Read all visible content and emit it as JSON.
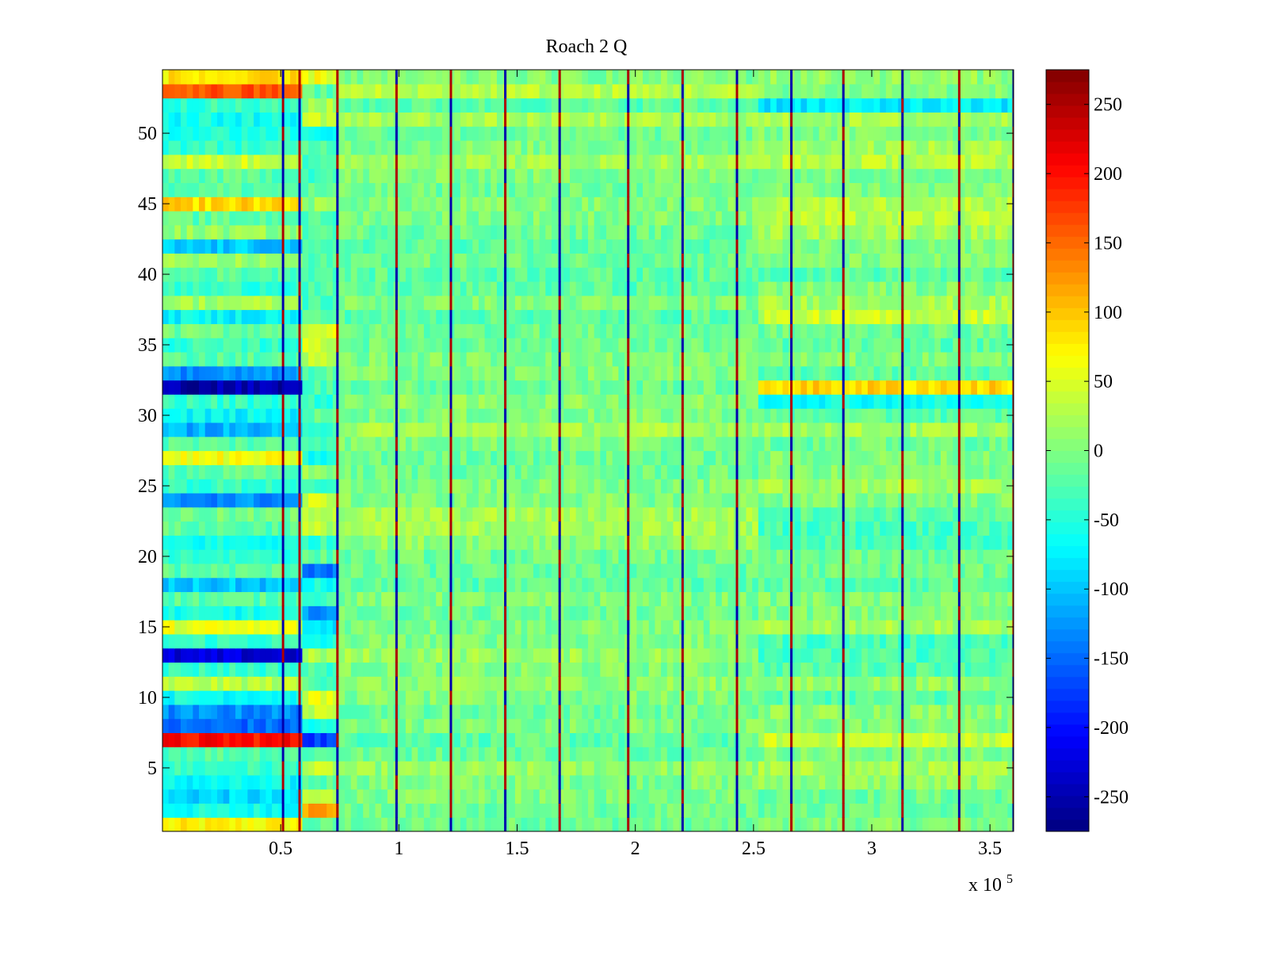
{
  "chart_data": {
    "type": "heatmap",
    "title": "Roach 2 Q",
    "xlabel": "",
    "ylabel": "",
    "x_exponent_label": "x 10",
    "x_exponent_power": "5",
    "xlim": [
      0,
      360000
    ],
    "ylim": [
      0.5,
      54.5
    ],
    "x_ticks": [
      0.5,
      1,
      1.5,
      2,
      2.5,
      3,
      3.5
    ],
    "x_tick_labels": [
      "0.5",
      "1",
      "1.5",
      "2",
      "2.5",
      "3",
      "3.5"
    ],
    "y_ticks": [
      5,
      10,
      15,
      20,
      25,
      30,
      35,
      40,
      45,
      50
    ],
    "y_tick_labels": [
      "5",
      "10",
      "15",
      "20",
      "25",
      "30",
      "35",
      "40",
      "45",
      "50"
    ],
    "rows": 54,
    "colorbar": {
      "colormap": "jet",
      "range": [
        -275,
        275
      ],
      "ticks": [
        -250,
        -200,
        -150,
        -100,
        -50,
        0,
        50,
        100,
        150,
        200,
        250
      ],
      "tick_labels": [
        "-250",
        "-200",
        "-150",
        "-100",
        "-50",
        "0",
        "50",
        "100",
        "150",
        "200",
        "250"
      ]
    },
    "segment_boundaries_x1e5": [
      0.6,
      0.74,
      2.52
    ],
    "vertical_stripes_x1e5": [
      0.51,
      0.58,
      0.74,
      0.99,
      1.22,
      1.45,
      1.68,
      1.97,
      2.2,
      2.43,
      2.66,
      2.88,
      3.13,
      3.37,
      3.6
    ],
    "row_means_segment_1": [
      70,
      -60,
      -90,
      -70,
      -40,
      -20,
      200,
      -150,
      -130,
      -60,
      30,
      -40,
      -230,
      -40,
      55,
      -60,
      -20,
      -100,
      -20,
      -40,
      -60,
      -20,
      -10,
      -130,
      -40,
      -20,
      60,
      -20,
      -110,
      -70,
      -40,
      -250,
      -130,
      -20,
      -40,
      -10,
      -70,
      20,
      -40,
      -20,
      10,
      -100,
      10,
      -20,
      90,
      -20,
      -20,
      40,
      -40,
      -50,
      -60,
      -40,
      160,
      80
    ],
    "row_means_segment_2": [
      -20,
      120,
      30,
      -20,
      30,
      -20,
      -170,
      -60,
      30,
      50,
      -20,
      -30,
      20,
      -60,
      -80,
      -120,
      -30,
      -60,
      -140,
      -20,
      -40,
      30,
      40,
      40,
      -50,
      10,
      -60,
      -20,
      -30,
      -20,
      -40,
      -30,
      -20,
      30,
      40,
      50,
      -20,
      -30,
      -30,
      -20,
      -30,
      -40,
      -20,
      -30,
      10,
      -20,
      -30,
      -40,
      -20,
      -60,
      40,
      20,
      -20,
      60
    ],
    "row_means_segment_3": [
      -10,
      -10,
      0,
      0,
      10,
      -10,
      -20,
      0,
      -10,
      0,
      10,
      0,
      15,
      0,
      0,
      -10,
      0,
      -20,
      -15,
      -10,
      10,
      20,
      20,
      0,
      0,
      -10,
      -10,
      0,
      20,
      0,
      5,
      -10,
      0,
      0,
      -10,
      -10,
      -20,
      0,
      -20,
      -20,
      -10,
      -20,
      -10,
      0,
      0,
      -10,
      0,
      20,
      0,
      -10,
      20,
      -20,
      30,
      0
    ],
    "row_means_segment_4": [
      0,
      -10,
      -10,
      10,
      20,
      0,
      40,
      0,
      10,
      -20,
      10,
      -20,
      -30,
      -30,
      20,
      0,
      0,
      -20,
      -10,
      -10,
      -30,
      -30,
      -20,
      0,
      20,
      0,
      0,
      -10,
      20,
      -20,
      -60,
      90,
      -20,
      0,
      -20,
      -10,
      40,
      20,
      0,
      -20,
      0,
      0,
      20,
      30,
      30,
      0,
      0,
      30,
      20,
      0,
      20,
      -80,
      0,
      10
    ]
  }
}
